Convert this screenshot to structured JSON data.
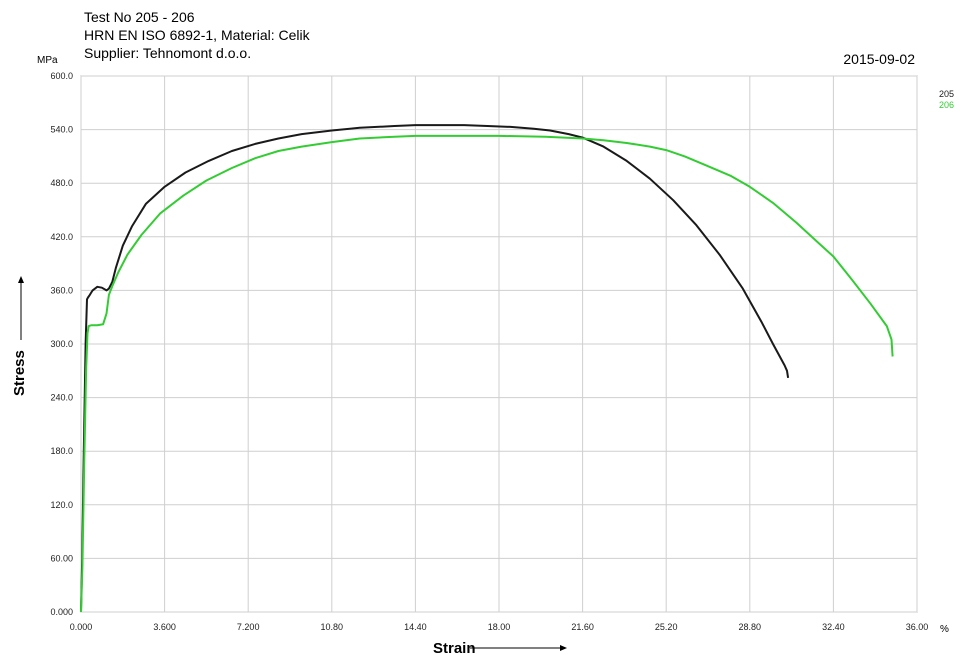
{
  "header": {
    "line1": "Test No  205 - 206",
    "line2": "HRN EN ISO 6892-1, Material: Celik",
    "line3": "Supplier: Tehnomont d.o.o.",
    "date": "2015-09-02"
  },
  "chart_data": {
    "type": "line",
    "xlabel": "Strain",
    "ylabel": "Stress",
    "x_unit": "%",
    "y_unit": "MPa",
    "xlim": [
      0,
      36
    ],
    "ylim": [
      0,
      600
    ],
    "grid": true,
    "legend_position": "top-right",
    "x_ticks": [
      "0.000",
      "3.600",
      "7.200",
      "10.80",
      "14.40",
      "18.00",
      "21.60",
      "25.20",
      "28.80",
      "32.40",
      "36.00"
    ],
    "y_ticks": [
      "0.000",
      "60.00",
      "120.0",
      "180.0",
      "240.0",
      "300.0",
      "360.0",
      "420.0",
      "480.0",
      "540.0",
      "600.0"
    ],
    "series": [
      {
        "name": "205",
        "color": "#1a1a1a",
        "x": [
          0,
          0.05,
          0.12,
          0.2,
          0.26,
          0.3,
          0.38,
          0.5,
          0.7,
          0.9,
          1.1,
          1.2,
          1.3,
          1.35,
          1.5,
          1.8,
          2.2,
          2.8,
          3.6,
          4.5,
          5.5,
          6.5,
          7.5,
          8.5,
          9.5,
          10.8,
          12,
          13.5,
          14.4,
          15.5,
          16.5,
          17.5,
          18.5,
          19.5,
          20.2,
          21,
          21.6,
          22.5,
          23.5,
          24.5,
          25.5,
          26.5,
          27.5,
          28.5,
          29.3,
          29.8,
          30.3,
          30.4,
          30.45
        ],
        "y": [
          0,
          60,
          180,
          300,
          350,
          352,
          355,
          360,
          364,
          363,
          360,
          362,
          367,
          370,
          385,
          410,
          432,
          457,
          476,
          492,
          505,
          516,
          524,
          530,
          535,
          539,
          542,
          544,
          545,
          545,
          545,
          544,
          543,
          541,
          539,
          535,
          531,
          521,
          505,
          485,
          461,
          433,
          400,
          362,
          325,
          300,
          276,
          270,
          262
        ]
      },
      {
        "name": "206",
        "color": "#33cc33",
        "x": [
          0,
          0.06,
          0.14,
          0.22,
          0.28,
          0.33,
          0.45,
          0.7,
          0.95,
          1.1,
          1.2,
          1.35,
          1.6,
          2,
          2.6,
          3.4,
          4.4,
          5.4,
          6.5,
          7.5,
          8.5,
          9.5,
          10.8,
          12,
          13.5,
          14.4,
          16,
          18,
          20,
          21.6,
          22.5,
          23.5,
          24.5,
          25.2,
          26,
          27,
          28,
          28.8,
          29.8,
          30.8,
          31.8,
          32.4,
          33.2,
          34,
          34.7,
          34.9,
          34.95
        ],
        "y": [
          0,
          50,
          170,
          270,
          312,
          320,
          321,
          321,
          322,
          334,
          355,
          365,
          380,
          400,
          422,
          446,
          466,
          483,
          497,
          508,
          516,
          521,
          526,
          530,
          532,
          533,
          533,
          533,
          532,
          530,
          528,
          525,
          521,
          517,
          510,
          499,
          488,
          476,
          458,
          436,
          412,
          398,
          372,
          345,
          320,
          305,
          286
        ]
      }
    ]
  }
}
